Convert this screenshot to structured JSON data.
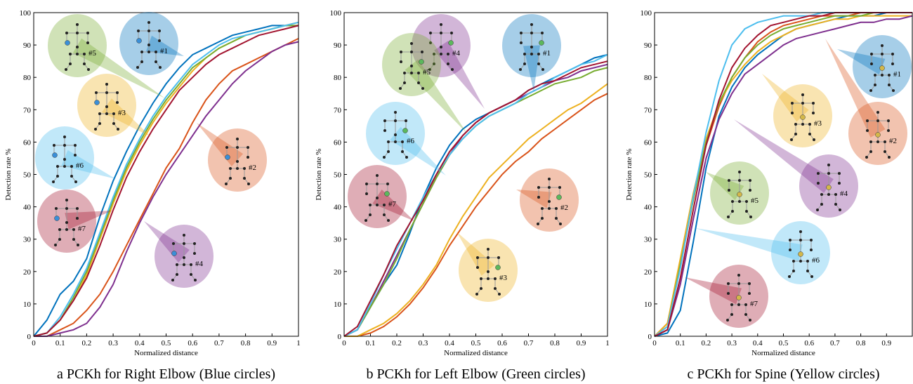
{
  "chart_data": [
    {
      "type": "line",
      "title": "a PCKh for Right Elbow (Blue circles)",
      "xlabel": "Normalized distance",
      "ylabel": "Detection rate %",
      "x": [
        0,
        0.05,
        0.1,
        0.15,
        0.2,
        0.25,
        0.3,
        0.35,
        0.4,
        0.45,
        0.5,
        0.55,
        0.6,
        0.65,
        0.7,
        0.75,
        0.8,
        0.85,
        0.9,
        0.95,
        1
      ],
      "xlim": [
        0,
        1
      ],
      "xticks": [
        0,
        0.1,
        0.2,
        0.3,
        0.4,
        0.5,
        0.6,
        0.7,
        0.8,
        0.9,
        1
      ],
      "ylim": [
        0,
        100
      ],
      "yticks": [
        0,
        10,
        20,
        30,
        40,
        50,
        60,
        70,
        80,
        90,
        100
      ],
      "joint_color": "#3a8fd8",
      "series": [
        {
          "name": "#1",
          "color": "#0072bd",
          "values": [
            0,
            5,
            13,
            17,
            24,
            37,
            48,
            57,
            65,
            72,
            78,
            83,
            87,
            89,
            91,
            93,
            94,
            95,
            96,
            96,
            96
          ]
        },
        {
          "name": "#2",
          "color": "#d95319",
          "values": [
            0,
            0,
            2,
            4,
            8,
            13,
            20,
            28,
            36,
            44,
            52,
            58,
            66,
            73,
            78,
            82,
            84,
            86,
            88,
            90,
            92
          ]
        },
        {
          "name": "#3",
          "color": "#edb120",
          "values": [
            0,
            1,
            5,
            11,
            19,
            30,
            41,
            51,
            59,
            66,
            72,
            77,
            82,
            86,
            89,
            91,
            93,
            94,
            95,
            96,
            97
          ]
        },
        {
          "name": "#4",
          "color": "#7e2f8e",
          "values": [
            0,
            0,
            1,
            2,
            4,
            9,
            16,
            26,
            35,
            43,
            50,
            56,
            62,
            68,
            73,
            78,
            82,
            85,
            88,
            90,
            91
          ]
        },
        {
          "name": "#5",
          "color": "#77ac30",
          "values": [
            0,
            1,
            5,
            12,
            20,
            31,
            42,
            52,
            60,
            67,
            73,
            78,
            83,
            86,
            89,
            91,
            93,
            94,
            95,
            96,
            96
          ]
        },
        {
          "name": "#6",
          "color": "#4dbeee",
          "values": [
            0,
            1,
            6,
            13,
            21,
            32,
            43,
            53,
            61,
            68,
            74,
            79,
            84,
            87,
            90,
            92,
            93,
            94,
            95,
            96,
            97
          ]
        },
        {
          "name": "#7",
          "color": "#a2142f",
          "values": [
            0,
            1,
            5,
            11,
            18,
            28,
            39,
            49,
            57,
            64,
            70,
            76,
            80,
            84,
            87,
            89,
            91,
            93,
            94,
            95,
            96
          ]
        }
      ]
    },
    {
      "type": "line",
      "title": "b PCKh for Left Elbow (Green circles)",
      "xlabel": "Normalized distance",
      "ylabel": "Detection rate %",
      "x": [
        0,
        0.05,
        0.1,
        0.15,
        0.2,
        0.25,
        0.3,
        0.35,
        0.4,
        0.45,
        0.5,
        0.55,
        0.6,
        0.65,
        0.7,
        0.75,
        0.8,
        0.85,
        0.9,
        0.95,
        1
      ],
      "xlim": [
        0,
        1
      ],
      "xticks": [
        0,
        0.1,
        0.2,
        0.3,
        0.4,
        0.5,
        0.6,
        0.7,
        0.8,
        0.9,
        1
      ],
      "ylim": [
        0,
        100
      ],
      "yticks": [
        0,
        10,
        20,
        30,
        40,
        50,
        60,
        70,
        80,
        90,
        100
      ],
      "joint_color": "#5cb85c",
      "series": [
        {
          "name": "#1",
          "color": "#0072bd",
          "values": [
            0,
            2,
            9,
            16,
            22,
            32,
            43,
            52,
            59,
            64,
            67,
            69,
            71,
            73,
            76,
            78,
            80,
            82,
            84,
            86,
            87
          ]
        },
        {
          "name": "#2",
          "color": "#d95319",
          "values": [
            0,
            0,
            1,
            3,
            6,
            10,
            15,
            21,
            28,
            34,
            40,
            45,
            50,
            54,
            57,
            61,
            64,
            67,
            70,
            73,
            75
          ]
        },
        {
          "name": "#3",
          "color": "#edb120",
          "values": [
            0,
            0,
            2,
            4,
            7,
            11,
            16,
            22,
            30,
            37,
            43,
            49,
            53,
            57,
            61,
            64,
            67,
            70,
            72,
            75,
            78
          ]
        },
        {
          "name": "#4",
          "color": "#7e2f8e",
          "values": [
            0,
            2,
            9,
            17,
            25,
            33,
            41,
            49,
            56,
            62,
            66,
            69,
            71,
            73,
            75,
            77,
            79,
            80,
            82,
            83,
            84
          ]
        },
        {
          "name": "#5",
          "color": "#77ac30",
          "values": [
            0,
            2,
            9,
            16,
            24,
            33,
            41,
            49,
            56,
            61,
            65,
            68,
            70,
            72,
            74,
            76,
            78,
            79,
            80,
            82,
            83
          ]
        },
        {
          "name": "#6",
          "color": "#4dbeee",
          "values": [
            0,
            2,
            10,
            19,
            27,
            35,
            43,
            50,
            56,
            61,
            65,
            68,
            70,
            72,
            75,
            77,
            80,
            82,
            84,
            85,
            87
          ]
        },
        {
          "name": "#7",
          "color": "#a2142f",
          "values": [
            0,
            3,
            11,
            19,
            28,
            35,
            42,
            50,
            57,
            62,
            66,
            69,
            71,
            73,
            76,
            78,
            79,
            81,
            83,
            84,
            85
          ]
        }
      ]
    },
    {
      "type": "line",
      "title": "c PCKh for Spine (Yellow circles)",
      "xlabel": "Normalized distance",
      "ylabel": "Detection rate %",
      "x": [
        0,
        0.05,
        0.1,
        0.15,
        0.2,
        0.25,
        0.3,
        0.35,
        0.4,
        0.45,
        0.5,
        0.55,
        0.6,
        0.65,
        0.7,
        0.75,
        0.8,
        0.85,
        0.9,
        0.95,
        1
      ],
      "xlim": [
        0,
        1
      ],
      "xticks": [
        0,
        0.1,
        0.2,
        0.3,
        0.4,
        0.5,
        0.6,
        0.7,
        0.8,
        0.9
      ],
      "ylim": [
        0,
        100
      ],
      "yticks": [
        0,
        10,
        20,
        30,
        40,
        50,
        60,
        70,
        80,
        90,
        100
      ],
      "joint_color": "#d4b84a",
      "series": [
        {
          "name": "#1",
          "color": "#0072bd",
          "values": [
            0,
            1,
            8,
            29,
            52,
            68,
            77,
            83,
            87,
            90,
            93,
            95,
            96,
            97,
            98,
            99,
            99,
            99,
            100,
            100,
            100
          ]
        },
        {
          "name": "#2",
          "color": "#d95319",
          "values": [
            0,
            4,
            22,
            43,
            59,
            71,
            80,
            86,
            91,
            94,
            96,
            97,
            98,
            99,
            99,
            99,
            100,
            100,
            100,
            100,
            100
          ]
        },
        {
          "name": "#3",
          "color": "#edb120",
          "values": [
            0,
            4,
            24,
            44,
            61,
            72,
            79,
            84,
            88,
            91,
            93,
            95,
            96,
            97,
            98,
            98,
            99,
            99,
            99,
            99,
            99
          ]
        },
        {
          "name": "#4",
          "color": "#7e2f8e",
          "values": [
            0,
            2,
            16,
            36,
            55,
            67,
            75,
            81,
            84,
            87,
            90,
            92,
            93,
            94,
            95,
            96,
            97,
            97,
            98,
            98,
            99
          ]
        },
        {
          "name": "#5",
          "color": "#77ac30",
          "values": [
            0,
            3,
            22,
            42,
            60,
            72,
            80,
            86,
            90,
            93,
            95,
            96,
            97,
            98,
            99,
            99,
            99,
            100,
            100,
            100,
            100
          ]
        },
        {
          "name": "#6",
          "color": "#4dbeee",
          "values": [
            0,
            3,
            21,
            43,
            63,
            79,
            90,
            95,
            97,
            98,
            99,
            99,
            99,
            100,
            100,
            100,
            100,
            100,
            100,
            100,
            100
          ]
        },
        {
          "name": "#7",
          "color": "#a2142f",
          "values": [
            0,
            2,
            18,
            39,
            59,
            73,
            83,
            89,
            93,
            96,
            97,
            98,
            99,
            99,
            100,
            100,
            100,
            100,
            100,
            100,
            100
          ]
        }
      ]
    }
  ]
}
